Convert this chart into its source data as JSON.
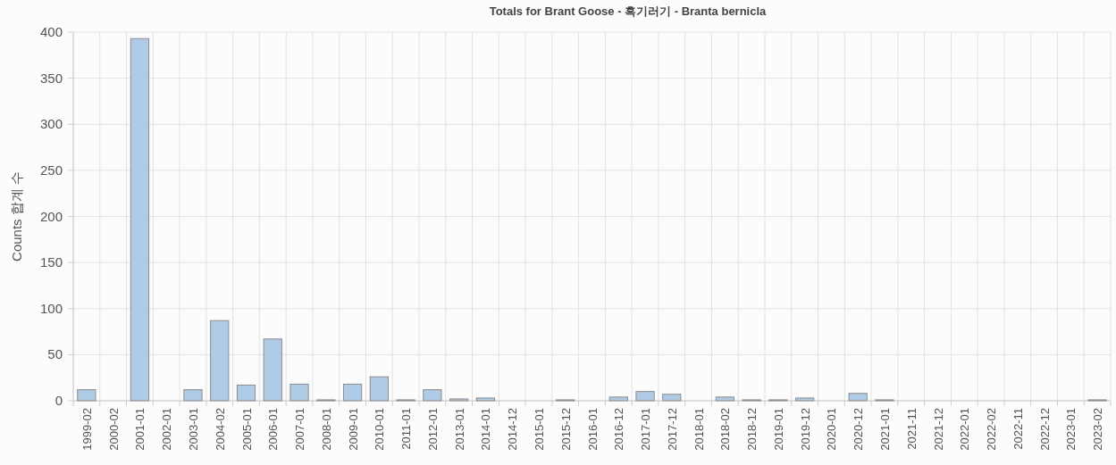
{
  "chart_data": {
    "type": "bar",
    "title": "Totals for Brant Goose - 흑기러기 - Branta bernicla",
    "ylabel": "Counts 합계 수",
    "categories": [
      "1999-02",
      "2000-02",
      "2001-01",
      "2002-01",
      "2003-01",
      "2004-02",
      "2005-01",
      "2006-01",
      "2007-01",
      "2008-01",
      "2009-01",
      "2010-01",
      "2011-01",
      "2012-01",
      "2013-01",
      "2014-01",
      "2014-12",
      "2015-01",
      "2015-12",
      "2016-01",
      "2016-12",
      "2017-01",
      "2017-12",
      "2018-01",
      "2018-02",
      "2018-12",
      "2019-01",
      "2019-12",
      "2020-01",
      "2020-12",
      "2021-01",
      "2021-11",
      "2021-12",
      "2022-01",
      "2022-02",
      "2022-11",
      "2022-12",
      "2023-01",
      "2023-02"
    ],
    "values": [
      12,
      0,
      393,
      0,
      12,
      87,
      17,
      67,
      18,
      1,
      18,
      26,
      1,
      12,
      2,
      3,
      0,
      0,
      1,
      0,
      4,
      10,
      7,
      0,
      4,
      1,
      1,
      3,
      0,
      8,
      1,
      0,
      0,
      0,
      0,
      0,
      0,
      0,
      1
    ],
    "color": "#b0cbe5",
    "ylim": [
      0,
      400
    ],
    "yticks": [
      0,
      50,
      100,
      150,
      200,
      250,
      300,
      350,
      400
    ],
    "grid": true
  }
}
